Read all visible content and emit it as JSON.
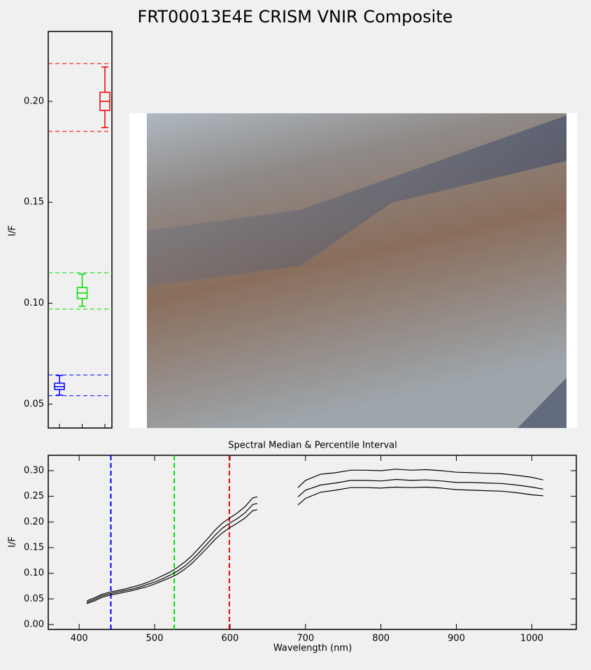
{
  "title": "FRT00013E4E CRISM VNIR Composite",
  "chart_data": [
    {
      "type": "box",
      "ylabel": "I/F",
      "categories": [
        null,
        null,
        null
      ],
      "ylim": [
        0.0382,
        0.2346
      ],
      "yticks": [
        0.05,
        {
          "value": 0.1,
          "label": "0.10"
        },
        0.15,
        {
          "value": 0.2,
          "label": "0.20"
        }
      ],
      "boxes": [
        {
          "color": "#0000ff",
          "whisker_low": 0.0545,
          "q1": 0.0573,
          "median": 0.0587,
          "q3": 0.0604,
          "whisker_high": 0.0642,
          "limits": [
            0.0542,
            0.0645
          ]
        },
        {
          "color": "#00dd00",
          "whisker_low": 0.0985,
          "q1": 0.1023,
          "median": 0.1051,
          "q3": 0.1078,
          "whisker_high": 0.1144,
          "limits": [
            0.0971,
            0.1151
          ]
        },
        {
          "color": "#ee0000",
          "whisker_low": 0.187,
          "q1": 0.1955,
          "median": 0.2,
          "q3": 0.2045,
          "whisker_high": 0.217,
          "limits": [
            0.1851,
            0.2187
          ]
        }
      ]
    },
    {
      "type": "line",
      "title": "Spectral Median & Percentile Interval",
      "xlabel": "Wavelength (nm)",
      "ylabel": "I/F",
      "xlim": [
        359,
        1059
      ],
      "xticks": [
        400,
        500,
        600,
        700,
        800,
        900,
        1000
      ],
      "ylim": [
        -0.0095,
        0.33
      ],
      "yticks": [
        {
          "value": 0,
          "label": "0.00"
        },
        0.05,
        {
          "value": 0.1,
          "label": "0.10"
        },
        0.15,
        {
          "value": 0.2,
          "label": "0.20"
        },
        0.25,
        {
          "value": 0.3,
          "label": "0.30"
        }
      ],
      "vlines": [
        {
          "value": 442,
          "color": "#0000ff"
        },
        {
          "value": 526,
          "color": "#00dd00"
        },
        {
          "value": 599,
          "color": "#ee0000"
        }
      ],
      "x": [
        410,
        420,
        430,
        440,
        450,
        460,
        470,
        480,
        490,
        500,
        510,
        520,
        530,
        540,
        550,
        560,
        570,
        580,
        590,
        600,
        610,
        620,
        630,
        636,
        660,
        690,
        700,
        720,
        740,
        760,
        780,
        800,
        820,
        840,
        860,
        880,
        900,
        920,
        940,
        960,
        980,
        1000,
        1015
      ],
      "series": [
        {
          "color": "#000000",
          "values": [
            0.046,
            0.052,
            0.059,
            0.063,
            0.066,
            0.069,
            0.073,
            0.077,
            0.082,
            0.088,
            0.095,
            0.102,
            0.111,
            0.122,
            0.135,
            0.151,
            0.167,
            0.184,
            0.198,
            0.208,
            0.218,
            0.23,
            0.247,
            0.249,
            null,
            0.267,
            0.281,
            0.293,
            0.296,
            0.301,
            0.301,
            0.3,
            0.303,
            0.301,
            0.302,
            0.3,
            0.297,
            0.296,
            0.295,
            0.294,
            0.291,
            0.287,
            0.282
          ]
        },
        {
          "color": "#000000",
          "values": [
            0.043,
            0.049,
            0.056,
            0.06,
            0.063,
            0.066,
            0.069,
            0.073,
            0.078,
            0.083,
            0.089,
            0.096,
            0.104,
            0.114,
            0.127,
            0.142,
            0.158,
            0.174,
            0.188,
            0.198,
            0.207,
            0.218,
            0.234,
            0.236,
            null,
            0.249,
            0.262,
            0.272,
            0.276,
            0.281,
            0.281,
            0.28,
            0.283,
            0.281,
            0.282,
            0.28,
            0.277,
            0.277,
            0.276,
            0.275,
            0.272,
            0.268,
            0.264
          ]
        },
        {
          "color": "#000000",
          "values": [
            0.041,
            0.046,
            0.053,
            0.057,
            0.06,
            0.063,
            0.066,
            0.07,
            0.074,
            0.079,
            0.085,
            0.091,
            0.098,
            0.108,
            0.12,
            0.135,
            0.15,
            0.166,
            0.179,
            0.189,
            0.198,
            0.208,
            0.222,
            0.224,
            null,
            0.233,
            0.246,
            0.258,
            0.262,
            0.267,
            0.267,
            0.266,
            0.268,
            0.267,
            0.268,
            0.266,
            0.263,
            0.262,
            0.261,
            0.26,
            0.257,
            0.253,
            0.251
          ]
        }
      ]
    }
  ]
}
